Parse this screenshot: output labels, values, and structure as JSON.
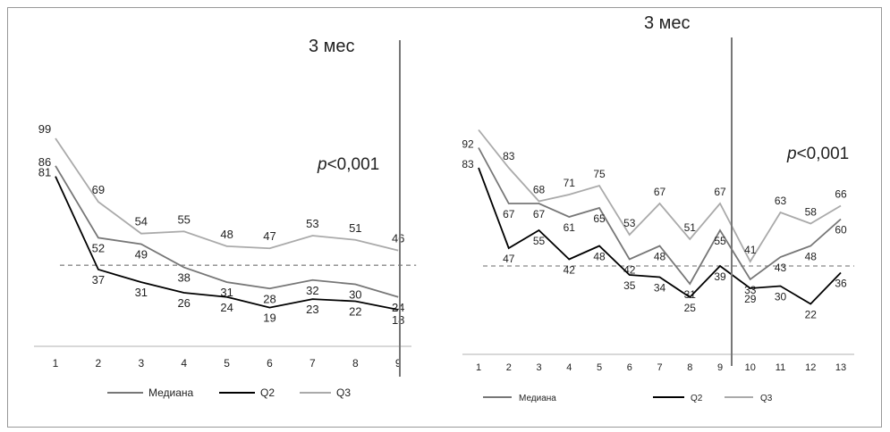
{
  "chart_data": [
    {
      "type": "line",
      "annotation_period": "3 мес",
      "p_value_prefix": "p",
      "p_value_rest": "<0,001",
      "x": [
        "1",
        "2",
        "3",
        "4",
        "5",
        "6",
        "7",
        "8",
        "9"
      ],
      "reference_line": 39,
      "marker_after_x": 9,
      "legend_placement": "bottom",
      "series": [
        {
          "name": "Медиана",
          "color": "#777777",
          "values": [
            86,
            52,
            49,
            38,
            31,
            28,
            32,
            30,
            24
          ],
          "labels": [
            "86",
            "52",
            "49",
            "38",
            "31",
            "28",
            "32",
            "30",
            "24"
          ]
        },
        {
          "name": "Q2",
          "color": "#000000",
          "values": [
            81,
            37,
            31,
            26,
            24,
            19,
            23,
            22,
            18
          ],
          "labels": [
            "81",
            "37",
            "31",
            "26",
            "24",
            "19",
            "23",
            "22",
            "18"
          ]
        },
        {
          "name": "Q3",
          "color": "#aaaaaa",
          "values": [
            99,
            69,
            54,
            55,
            48,
            47,
            53,
            51,
            46
          ],
          "labels": [
            "99",
            "69",
            "54",
            "55",
            "48",
            "47",
            "53",
            "51",
            "46"
          ]
        }
      ]
    },
    {
      "type": "line",
      "annotation_period": "3 мес",
      "p_value_prefix": "p",
      "p_value_rest": "<0,001",
      "x": [
        "1",
        "2",
        "3",
        "4",
        "5",
        "6",
        "7",
        "8",
        "9",
        "10",
        "11",
        "12",
        "13"
      ],
      "reference_line": 39,
      "marker_after_x": 9,
      "legend_placement": "bottom",
      "series": [
        {
          "name": "Медиана",
          "color": "#777777",
          "values": [
            92,
            67,
            67,
            61,
            65,
            42,
            48,
            31,
            55,
            33,
            43,
            48,
            60
          ],
          "labels": [
            "92",
            "67",
            "67",
            "61",
            "65",
            "42",
            "48",
            "31",
            "55",
            "33",
            "43",
            "48",
            "60"
          ]
        },
        {
          "name": "Q2",
          "color": "#000000",
          "values": [
            83,
            47,
            55,
            42,
            48,
            35,
            34,
            25,
            39,
            29,
            30,
            22,
            36
          ],
          "labels": [
            "83",
            "47",
            "55",
            "42",
            "48",
            "35",
            "34",
            "25",
            "39",
            "29",
            "30",
            "22",
            "36"
          ]
        },
        {
          "name": "Q3",
          "color": "#aaaaaa",
          "values": [
            100,
            83,
            68,
            71,
            75,
            53,
            67,
            51,
            67,
            41,
            63,
            58,
            66
          ],
          "labels": [
            "",
            "83",
            "68",
            "71",
            "75",
            "53",
            "67",
            "51",
            "67",
            "41",
            "63",
            "58",
            "66"
          ]
        }
      ]
    }
  ]
}
